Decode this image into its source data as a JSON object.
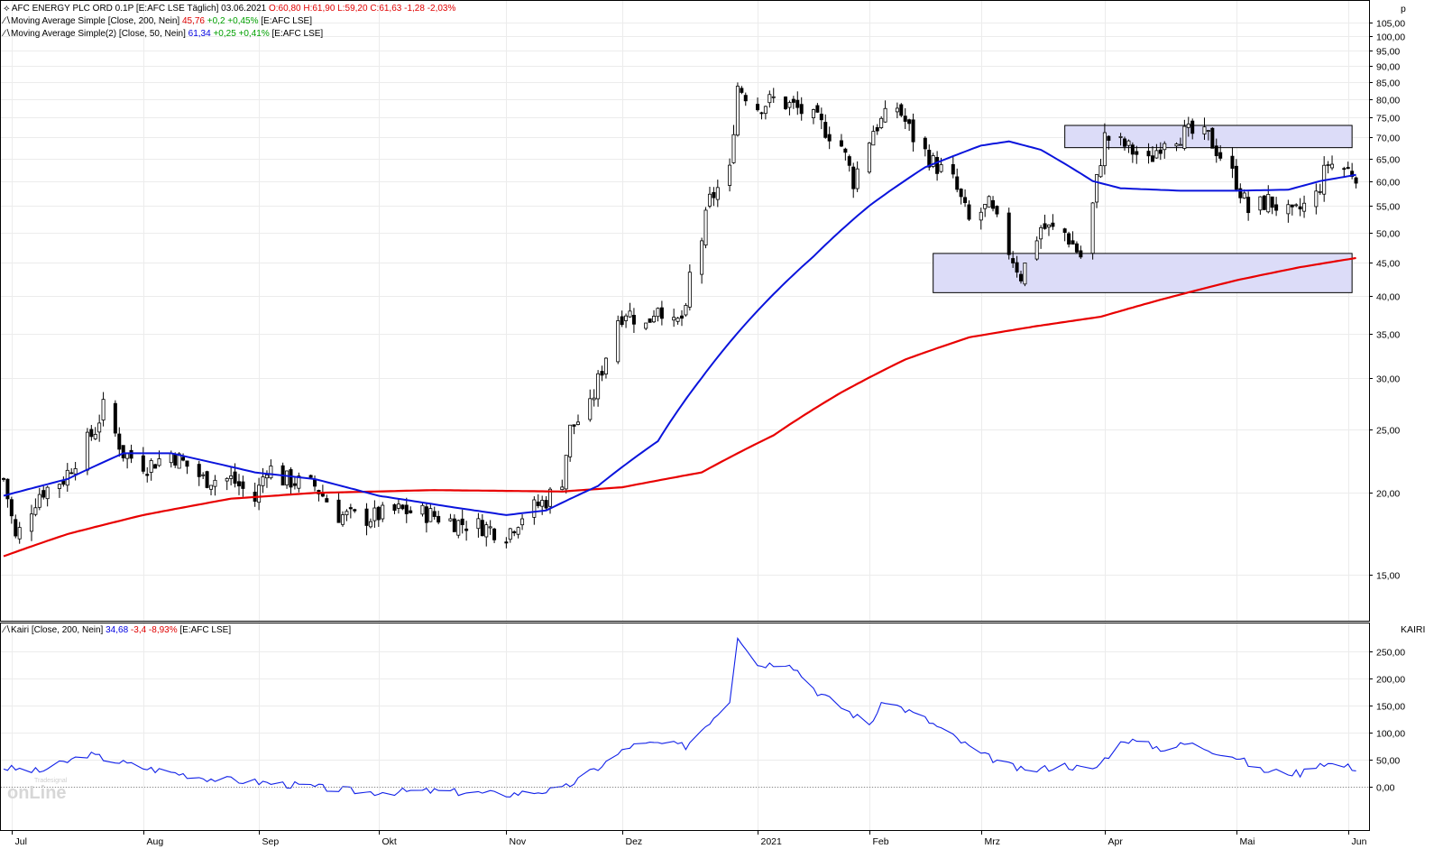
{
  "legend": {
    "price": {
      "name": "AFC ENERGY PLC ORD 0.1P [E:AFC LSE  Täglich]",
      "date": "03.06.2021",
      "ohlc": "O:60,80 H:61,90 L:59,20",
      "close": "C:61,63",
      "change": "-1,28 -2,03%"
    },
    "ma200": {
      "name": "Moving Average Simple [Close, 200, Nein]",
      "value": "45,76",
      "change": "+0,2 +0,45%",
      "exchange": "[E:AFC LSE]"
    },
    "ma50": {
      "name": "Moving Average Simple(2) [Close, 50, Nein]",
      "value": "61,34",
      "change": "+0,25 +0,41%",
      "exchange": "[E:AFC LSE]"
    },
    "kairi": {
      "name": "Kairi [Close, 200, Nein]",
      "value": "34,68",
      "change": "-3,4 -8,93%",
      "exchange": "[E:AFC LSE]"
    }
  },
  "logo": {
    "text": "onLine",
    "small": "Tradesignal"
  },
  "chart_data": [
    {
      "type": "candlestick",
      "y_unit_label": "p",
      "y_scale": "log",
      "ylim": [
        13.5,
        110
      ],
      "y_ticks": [
        "15,00",
        "20,00",
        "25,00",
        "30,00",
        "35,00",
        "40,00",
        "45,00",
        "50,00",
        "55,00",
        "60,00",
        "65,00",
        "70,00",
        "75,00",
        "80,00",
        "85,00",
        "90,00",
        "95,00",
        "100,00",
        "105,00"
      ],
      "y_tick_values": [
        15,
        20,
        25,
        30,
        35,
        40,
        45,
        50,
        55,
        60,
        65,
        70,
        75,
        80,
        85,
        90,
        95,
        100,
        105
      ],
      "x_ticks": [
        "Jul",
        "Aug",
        "Sep",
        "Okt",
        "Nov",
        "Dez",
        "2021",
        "Feb",
        "Mrz",
        "Apr",
        "Mai",
        "Jun"
      ],
      "x_tick_dates": [
        "2020-07-01",
        "2020-08-03",
        "2020-09-01",
        "2020-10-01",
        "2020-11-02",
        "2020-12-01",
        "2021-01-04",
        "2021-02-01",
        "2021-03-01",
        "2021-04-01",
        "2021-05-04",
        "2021-06-01"
      ],
      "x_range": [
        "2020-06-29",
        "2021-06-04"
      ],
      "grid": true,
      "close_anchors": [
        [
          "2020-06-29",
          21
        ],
        [
          "2020-07-02",
          17
        ],
        [
          "2020-07-08",
          20
        ],
        [
          "2020-07-14",
          21
        ],
        [
          "2020-07-22",
          25
        ],
        [
          "2020-07-24",
          27
        ],
        [
          "2020-07-29",
          23
        ],
        [
          "2020-08-04",
          22
        ],
        [
          "2020-08-10",
          23
        ],
        [
          "2020-08-18",
          21
        ],
        [
          "2020-08-25",
          21
        ],
        [
          "2020-08-31",
          19.5
        ],
        [
          "2020-09-03",
          22
        ],
        [
          "2020-09-07",
          21
        ],
        [
          "2020-09-15",
          20.5
        ],
        [
          "2020-09-21",
          18.5
        ],
        [
          "2020-09-28",
          18.3
        ],
        [
          "2020-10-06",
          18.8
        ],
        [
          "2020-10-13",
          18.6
        ],
        [
          "2020-10-21",
          18
        ],
        [
          "2020-10-27",
          17.8
        ],
        [
          "2020-11-02",
          17.3
        ],
        [
          "2020-11-06",
          18.5
        ],
        [
          "2020-11-12",
          19.5
        ],
        [
          "2020-11-16",
          21
        ],
        [
          "2020-11-18",
          25
        ],
        [
          "2020-11-23",
          27
        ],
        [
          "2020-11-26",
          31
        ],
        [
          "2020-11-30",
          37
        ],
        [
          "2020-12-02",
          38
        ],
        [
          "2020-12-07",
          36
        ],
        [
          "2020-12-10",
          39
        ],
        [
          "2020-12-14",
          36
        ],
        [
          "2020-12-17",
          37.5
        ],
        [
          "2020-12-18",
          43
        ],
        [
          "2020-12-21",
          49
        ],
        [
          "2020-12-23",
          56
        ],
        [
          "2020-12-28",
          62
        ],
        [
          "2020-12-30",
          84
        ],
        [
          "2021-01-04",
          78
        ],
        [
          "2021-01-08",
          80
        ],
        [
          "2021-01-13",
          78
        ],
        [
          "2021-01-19",
          74
        ],
        [
          "2021-01-25",
          68
        ],
        [
          "2021-01-28",
          60
        ],
        [
          "2021-02-02",
          72
        ],
        [
          "2021-02-08",
          78
        ],
        [
          "2021-02-12",
          70
        ],
        [
          "2021-02-17",
          64
        ],
        [
          "2021-02-22",
          60
        ],
        [
          "2021-02-26",
          52
        ],
        [
          "2021-03-03",
          55
        ],
        [
          "2021-03-08",
          47
        ],
        [
          "2021-03-11",
          43
        ],
        [
          "2021-03-16",
          51
        ],
        [
          "2021-03-22",
          50
        ],
        [
          "2021-03-26",
          46
        ],
        [
          "2021-03-29",
          55
        ],
        [
          "2021-04-01",
          70
        ],
        [
          "2021-04-06",
          68
        ],
        [
          "2021-04-12",
          64
        ],
        [
          "2021-04-16",
          70
        ],
        [
          "2021-04-22",
          71
        ],
        [
          "2021-04-27",
          70
        ],
        [
          "2021-05-04",
          60
        ],
        [
          "2021-05-07",
          54
        ],
        [
          "2021-05-12",
          56
        ],
        [
          "2021-05-18",
          53
        ],
        [
          "2021-05-24",
          57
        ],
        [
          "2021-05-27",
          64
        ],
        [
          "2021-06-03",
          61.63
        ]
      ],
      "ma50_anchors": [
        [
          "2020-06-29",
          19.8
        ],
        [
          "2020-07-15",
          21
        ],
        [
          "2020-07-29",
          23
        ],
        [
          "2020-08-10",
          23
        ],
        [
          "2020-08-31",
          21.5
        ],
        [
          "2020-09-15",
          21
        ],
        [
          "2020-10-01",
          19.8
        ],
        [
          "2020-10-20",
          19
        ],
        [
          "2020-11-02",
          18.5
        ],
        [
          "2020-11-12",
          18.8
        ],
        [
          "2020-11-25",
          20.5
        ],
        [
          "2020-12-10",
          24
        ],
        [
          "2020-12-21",
          30
        ],
        [
          "2021-01-04",
          38
        ],
        [
          "2021-01-18",
          46
        ],
        [
          "2021-02-01",
          55
        ],
        [
          "2021-02-15",
          63
        ],
        [
          "2021-03-01",
          68
        ],
        [
          "2021-03-08",
          69
        ],
        [
          "2021-03-16",
          67
        ],
        [
          "2021-03-29",
          60
        ],
        [
          "2021-04-05",
          58.5
        ],
        [
          "2021-04-20",
          58
        ],
        [
          "2021-05-04",
          58
        ],
        [
          "2021-05-17",
          58.2
        ],
        [
          "2021-05-25",
          60
        ],
        [
          "2021-06-03",
          61.34
        ]
      ],
      "ma200_anchors": [
        [
          "2020-06-29",
          16
        ],
        [
          "2020-07-15",
          17.3
        ],
        [
          "2020-08-03",
          18.5
        ],
        [
          "2020-08-25",
          19.6
        ],
        [
          "2020-09-15",
          20
        ],
        [
          "2020-10-15",
          20.2
        ],
        [
          "2020-11-16",
          20.1
        ],
        [
          "2020-12-01",
          20.4
        ],
        [
          "2020-12-21",
          21.5
        ],
        [
          "2021-01-08",
          24.5
        ],
        [
          "2021-01-25",
          28.5
        ],
        [
          "2021-02-10",
          32
        ],
        [
          "2021-02-26",
          34.6
        ],
        [
          "2021-03-15",
          36
        ],
        [
          "2021-03-31",
          37.2
        ],
        [
          "2021-04-15",
          39.5
        ],
        [
          "2021-05-04",
          42.3
        ],
        [
          "2021-05-20",
          44.3
        ],
        [
          "2021-06-03",
          45.76
        ]
      ],
      "rectangles": [
        {
          "from": "2021-03-22",
          "to": "2021-06-02",
          "low": 67.5,
          "high": 73
        },
        {
          "from": "2021-02-17",
          "to": "2021-06-02",
          "low": 40.5,
          "high": 46.5
        }
      ]
    },
    {
      "type": "line",
      "name": "KAIRI",
      "ylim": [
        -60,
        290
      ],
      "y_ticks": [
        "0,00",
        "50,00",
        "100,00",
        "150,00",
        "200,00",
        "250,00"
      ],
      "y_tick_values": [
        0,
        50,
        100,
        150,
        200,
        250
      ],
      "anchors": [
        [
          "2020-06-29",
          35
        ],
        [
          "2020-07-08",
          28
        ],
        [
          "2020-07-20",
          60
        ],
        [
          "2020-08-03",
          35
        ],
        [
          "2020-08-20",
          15
        ],
        [
          "2020-09-07",
          5
        ],
        [
          "2020-09-28",
          -10
        ],
        [
          "2020-10-15",
          -8
        ],
        [
          "2020-11-02",
          -14
        ],
        [
          "2020-11-16",
          -5
        ],
        [
          "2020-11-25",
          35
        ],
        [
          "2020-12-03",
          75
        ],
        [
          "2020-12-10",
          80
        ],
        [
          "2020-12-17",
          75
        ],
        [
          "2020-12-28",
          160
        ],
        [
          "2020-12-30",
          280
        ],
        [
          "2021-01-04",
          225
        ],
        [
          "2021-01-12",
          230
        ],
        [
          "2021-01-19",
          175
        ],
        [
          "2021-02-01",
          115
        ],
        [
          "2021-02-05",
          160
        ],
        [
          "2021-02-15",
          125
        ],
        [
          "2021-03-01",
          60
        ],
        [
          "2021-03-12",
          28
        ],
        [
          "2021-03-22",
          40
        ],
        [
          "2021-03-29",
          30
        ],
        [
          "2021-04-06",
          88
        ],
        [
          "2021-04-16",
          70
        ],
        [
          "2021-04-22",
          80
        ],
        [
          "2021-05-04",
          55
        ],
        [
          "2021-05-10",
          30
        ],
        [
          "2021-05-20",
          25
        ],
        [
          "2021-05-25",
          45
        ],
        [
          "2021-06-03",
          34.68
        ]
      ]
    }
  ]
}
